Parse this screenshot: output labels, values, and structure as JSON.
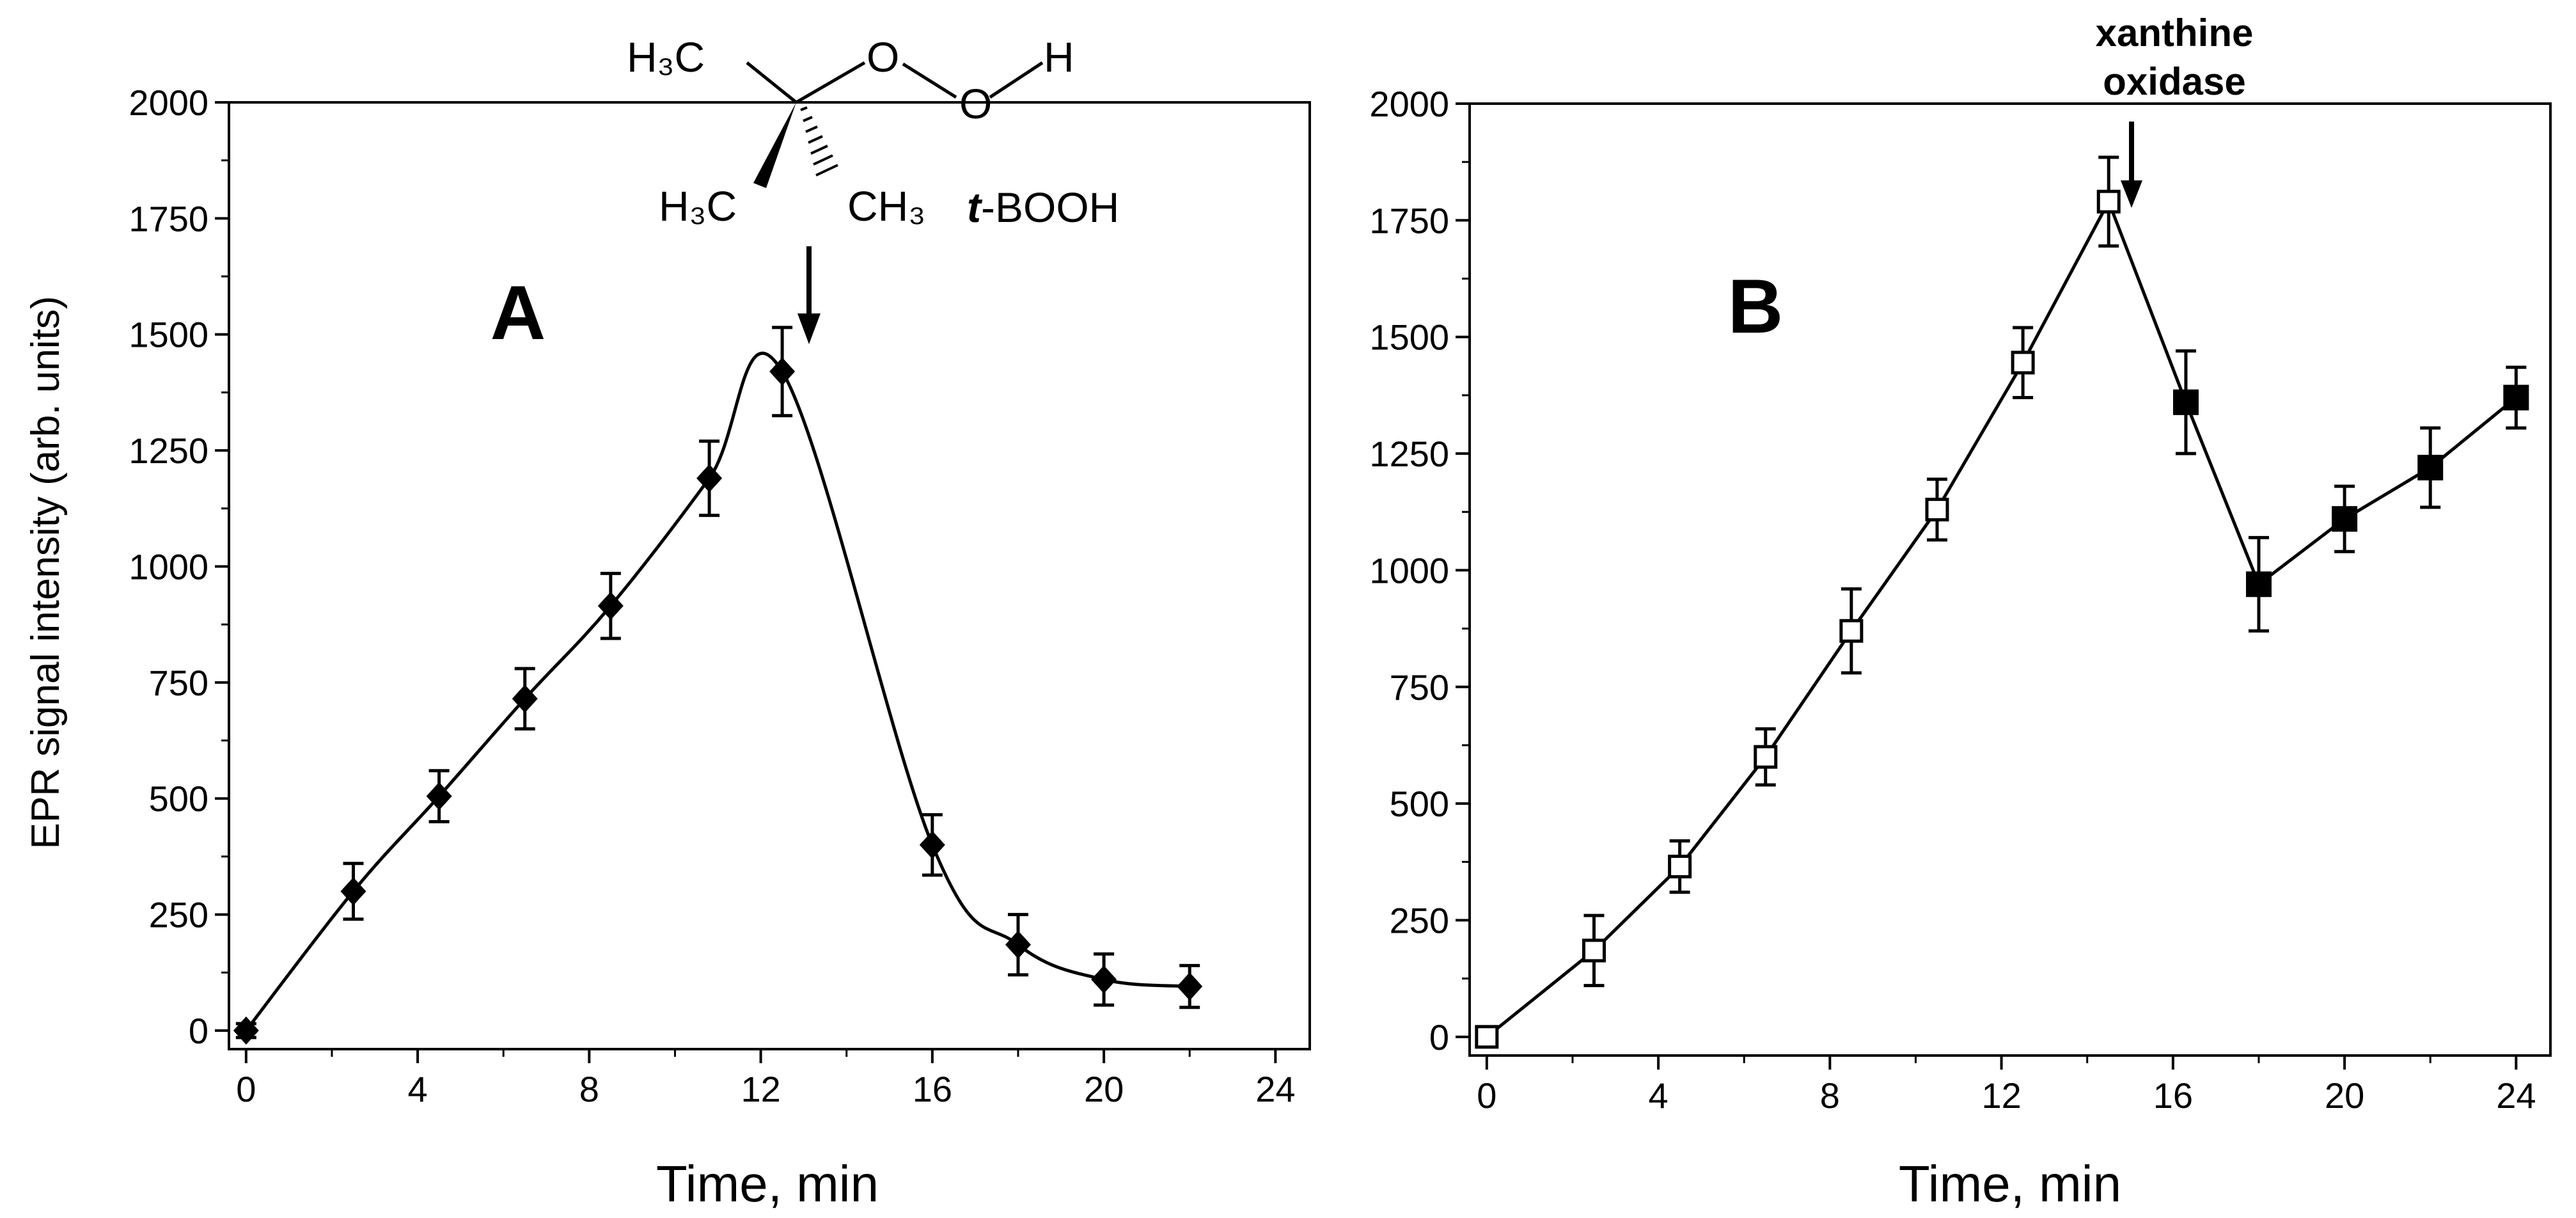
{
  "chart_data": [
    {
      "type": "line",
      "panel_label": "A",
      "xlabel": "Time, min",
      "ylabel": "EPR signal intensity (arb. units)",
      "xlim": [
        -0.4,
        24.8
      ],
      "ylim": [
        -40,
        2000
      ],
      "x_ticks": [
        0,
        4,
        8,
        12,
        16,
        20,
        24
      ],
      "y_ticks": [
        0,
        250,
        500,
        750,
        1000,
        1250,
        1500,
        1750,
        2000
      ],
      "series": [
        {
          "name": "EPR signal",
          "marker": "filled-diamond",
          "x": [
            0,
            2.5,
            4.5,
            6.5,
            8.5,
            10.8,
            12.5,
            16,
            18,
            20,
            22
          ],
          "y": [
            0,
            300,
            505,
            715,
            915,
            1190,
            1420,
            400,
            185,
            110,
            95
          ],
          "error": [
            15,
            60,
            55,
            65,
            70,
            80,
            95,
            65,
            65,
            55,
            45
          ]
        }
      ],
      "annotation": {
        "text": "t-BOOH",
        "text_italic": "t",
        "text_rest": "-BOOH",
        "at_x": 13.0,
        "structure_labels": [
          "H₃C",
          "O",
          "O",
          "H",
          "H₃C",
          "CH₃"
        ]
      }
    },
    {
      "type": "line",
      "panel_label": "B",
      "xlabel": "Time, min",
      "ylabel": "",
      "xlim": [
        -0.4,
        24.8
      ],
      "ylim": [
        -40,
        2000
      ],
      "x_ticks": [
        0,
        4,
        8,
        12,
        16,
        20,
        24
      ],
      "y_ticks": [
        0,
        250,
        500,
        750,
        1000,
        1250,
        1500,
        1750,
        2000
      ],
      "series": [
        {
          "name": "before xanthine oxidase",
          "marker": "open-square",
          "x": [
            0,
            2.5,
            4.5,
            6.5,
            8.5,
            10.5,
            12.5,
            14.5
          ],
          "y": [
            0,
            185,
            365,
            600,
            870,
            1130,
            1445,
            1790
          ],
          "error": [
            20,
            75,
            55,
            60,
            90,
            65,
            75,
            95
          ]
        },
        {
          "name": "after xanthine oxidase",
          "marker": "filled-square",
          "x": [
            16.3,
            18,
            20,
            22,
            24
          ],
          "y": [
            1360,
            970,
            1110,
            1220,
            1370
          ],
          "error": [
            110,
            100,
            70,
            85,
            65
          ]
        }
      ],
      "annotation": {
        "lines": [
          "xanthine",
          "oxidase"
        ],
        "at_x": 15.2
      }
    }
  ]
}
